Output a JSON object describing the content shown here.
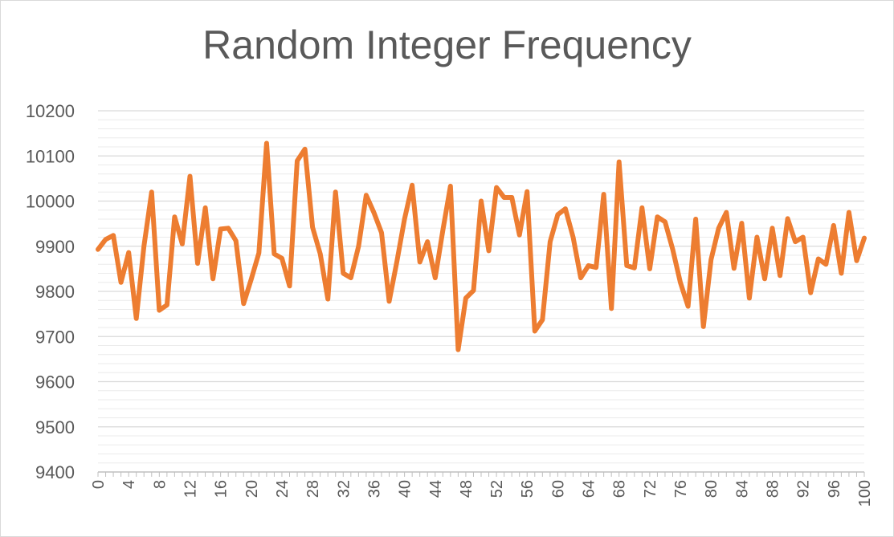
{
  "chart_data": {
    "type": "line",
    "title": "Random Integer Frequency",
    "xlabel": "",
    "ylabel": "",
    "ylim": [
      9400,
      10200
    ],
    "y_ticks": [
      9400,
      9500,
      9600,
      9700,
      9800,
      9900,
      10000,
      10100,
      10200
    ],
    "x_tick_step": 4,
    "grid": true,
    "legend": "none",
    "colors": {
      "line": "#ED7D31",
      "grid_major": "#d9d9d9",
      "grid_minor": "#ebebeb",
      "axis": "#bfbfbf",
      "text": "#595959"
    },
    "x": [
      0,
      1,
      2,
      3,
      4,
      5,
      6,
      7,
      8,
      9,
      10,
      11,
      12,
      13,
      14,
      15,
      16,
      17,
      18,
      19,
      20,
      21,
      22,
      23,
      24,
      25,
      26,
      27,
      28,
      29,
      30,
      31,
      32,
      33,
      34,
      35,
      36,
      37,
      38,
      39,
      40,
      41,
      42,
      43,
      44,
      45,
      46,
      47,
      48,
      49,
      50,
      51,
      52,
      53,
      54,
      55,
      56,
      57,
      58,
      59,
      60,
      61,
      62,
      63,
      64,
      65,
      66,
      67,
      68,
      69,
      70,
      71,
      72,
      73,
      74,
      75,
      76,
      77,
      78,
      79,
      80,
      81,
      82,
      83,
      84,
      85,
      86,
      87,
      88,
      89,
      90,
      91,
      92,
      93,
      94,
      95,
      96,
      97,
      98,
      99,
      100
    ],
    "series": [
      {
        "values": [
          9893,
          9915,
          9924,
          9820,
          9886,
          9740,
          9900,
          10020,
          9758,
          9770,
          9965,
          9905,
          10055,
          9862,
          9985,
          9828,
          9938,
          9940,
          9912,
          9773,
          9827,
          9885,
          10128,
          9883,
          9873,
          9812,
          10089,
          10115,
          9942,
          9883,
          9783,
          10020,
          9840,
          9830,
          9900,
          10013,
          9975,
          9930,
          9778,
          9866,
          9960,
          10035,
          9865,
          9910,
          9830,
          9935,
          10033,
          9671,
          9785,
          9802,
          10000,
          9890,
          10030,
          10008,
          10008,
          9925,
          10021,
          9712,
          9737,
          9910,
          9970,
          9983,
          9920,
          9830,
          9857,
          9853,
          10015,
          9762,
          10087,
          9857,
          9852,
          9985,
          9850,
          9965,
          9954,
          9893,
          9820,
          9767,
          9960,
          9722,
          9870,
          9940,
          9975,
          9851,
          9951,
          9785,
          9920,
          9828,
          9940,
          9835,
          9961,
          9910,
          9920,
          9797,
          9872,
          9860,
          9946,
          9840,
          9975,
          9868,
          9918
        ]
      }
    ]
  }
}
